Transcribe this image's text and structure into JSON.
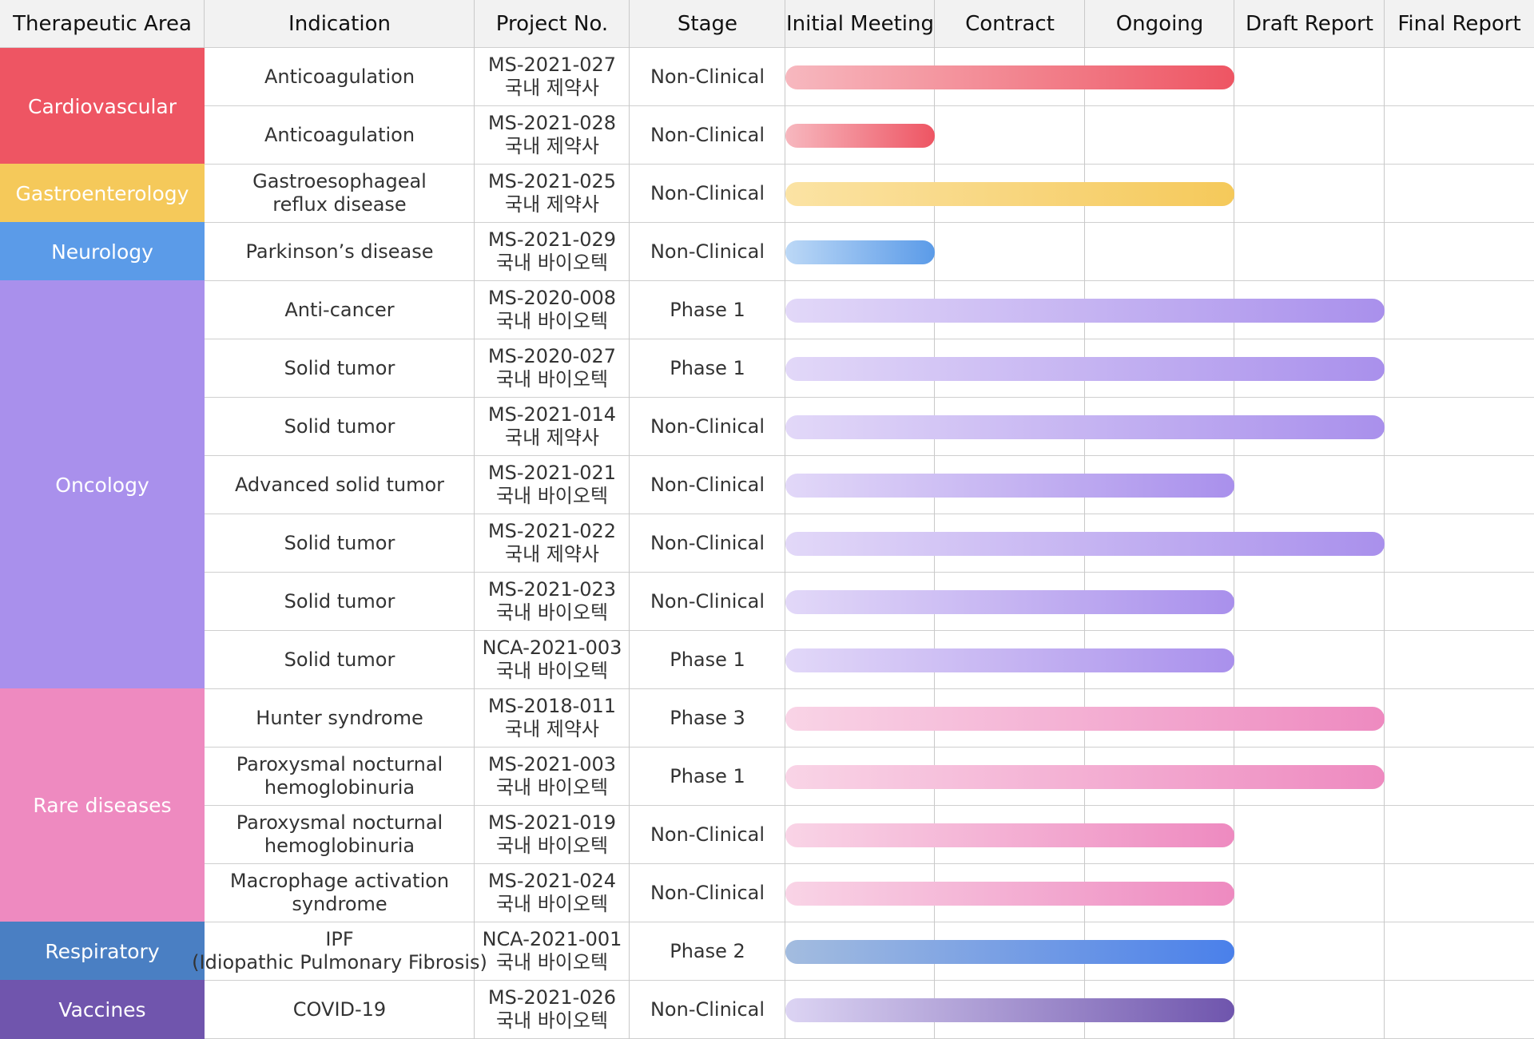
{
  "chart_data": {
    "type": "table",
    "headers": [
      "Therapeutic Area",
      "Indication",
      "Project No.",
      "Stage",
      "Initial Meeting",
      "Contract",
      "Ongoing",
      "Draft Report",
      "Final Report"
    ],
    "stage_columns": [
      "Initial Meeting",
      "Contract",
      "Ongoing",
      "Draft Report",
      "Final Report"
    ],
    "areas": [
      {
        "name": "Cardiovascular",
        "rows": 2,
        "color": "#ee5563",
        "bar_start": "#f7b8bf",
        "bar_end": "#ee5563"
      },
      {
        "name": "Gastroenterology",
        "rows": 1,
        "color": "#f5c95a",
        "bar_start": "#fbe3a4",
        "bar_end": "#f5c95a"
      },
      {
        "name": "Neurology",
        "rows": 1,
        "color": "#5b9be8",
        "bar_start": "#bcd8f6",
        "bar_end": "#5b9be8"
      },
      {
        "name": "Oncology",
        "rows": 7,
        "color": "#a990ec",
        "bar_start": "#e2d8f8",
        "bar_end": "#a990ec"
      },
      {
        "name": "Rare diseases",
        "rows": 4,
        "color": "#ee8ac0",
        "bar_start": "#f9d4e6",
        "bar_end": "#ee8ac0"
      },
      {
        "name": "Respiratory",
        "rows": 1,
        "color": "#4a7fc3",
        "bar_start": "#a3bcdf",
        "bar_end": "#4a80ea"
      },
      {
        "name": "Vaccines",
        "rows": 1,
        "color": "#7055ad",
        "bar_start": "#dcd4f3",
        "bar_end": "#6f55ad"
      }
    ],
    "rows": [
      {
        "indication": [
          "Anticoagulation"
        ],
        "project_no": "MS-2021-027",
        "sponsor": "국내 제약사",
        "stage": "Non-Clinical",
        "progress": "Ongoing",
        "progress_level": 3
      },
      {
        "indication": [
          "Anticoagulation"
        ],
        "project_no": "MS-2021-028",
        "sponsor": "국내 제약사",
        "stage": "Non-Clinical",
        "progress": "Initial Meeting",
        "progress_level": 1
      },
      {
        "indication": [
          "Gastroesophageal",
          "reflux disease"
        ],
        "project_no": "MS-2021-025",
        "sponsor": "국내 제약사",
        "stage": "Non-Clinical",
        "progress": "Ongoing",
        "progress_level": 3
      },
      {
        "indication": [
          "Parkinson’s disease"
        ],
        "project_no": "MS-2021-029",
        "sponsor": "국내 바이오텍",
        "stage": "Non-Clinical",
        "progress": "Initial Meeting",
        "progress_level": 1
      },
      {
        "indication": [
          "Anti-cancer"
        ],
        "project_no": "MS-2020-008",
        "sponsor": "국내 바이오텍",
        "stage": "Phase 1",
        "progress": "Draft Report",
        "progress_level": 4
      },
      {
        "indication": [
          "Solid tumor"
        ],
        "project_no": "MS-2020-027",
        "sponsor": "국내 바이오텍",
        "stage": "Phase 1",
        "progress": "Draft Report",
        "progress_level": 4
      },
      {
        "indication": [
          "Solid tumor"
        ],
        "project_no": "MS-2021-014",
        "sponsor": "국내 제약사",
        "stage": "Non-Clinical",
        "progress": "Draft Report",
        "progress_level": 4
      },
      {
        "indication": [
          "Advanced solid tumor"
        ],
        "project_no": "MS-2021-021",
        "sponsor": "국내 바이오텍",
        "stage": "Non-Clinical",
        "progress": "Ongoing",
        "progress_level": 3
      },
      {
        "indication": [
          "Solid tumor"
        ],
        "project_no": "MS-2021-022",
        "sponsor": "국내 제약사",
        "stage": "Non-Clinical",
        "progress": "Draft Report",
        "progress_level": 4
      },
      {
        "indication": [
          "Solid tumor"
        ],
        "project_no": "MS-2021-023",
        "sponsor": "국내 바이오텍",
        "stage": "Non-Clinical",
        "progress": "Ongoing",
        "progress_level": 3
      },
      {
        "indication": [
          "Solid tumor"
        ],
        "project_no": "NCA-2021-003",
        "sponsor": "국내 바이오텍",
        "stage": "Phase 1",
        "progress": "Ongoing",
        "progress_level": 3
      },
      {
        "indication": [
          "Hunter syndrome"
        ],
        "project_no": "MS-2018-011",
        "sponsor": "국내 제약사",
        "stage": "Phase 3",
        "progress": "Draft Report",
        "progress_level": 4
      },
      {
        "indication": [
          "Paroxysmal nocturnal",
          "hemoglobinuria"
        ],
        "project_no": "MS-2021-003",
        "sponsor": "국내 바이오텍",
        "stage": "Phase 1",
        "progress": "Draft Report",
        "progress_level": 4
      },
      {
        "indication": [
          "Paroxysmal nocturnal",
          "hemoglobinuria"
        ],
        "project_no": "MS-2021-019",
        "sponsor": "국내 바이오텍",
        "stage": "Non-Clinical",
        "progress": "Ongoing",
        "progress_level": 3
      },
      {
        "indication": [
          "Macrophage activation",
          "syndrome"
        ],
        "project_no": "MS-2021-024",
        "sponsor": "국내 바이오텍",
        "stage": "Non-Clinical",
        "progress": "Ongoing",
        "progress_level": 3
      },
      {
        "indication": [
          "IPF",
          "(Idiopathic Pulmonary Fibrosis)"
        ],
        "project_no": "NCA-2021-001",
        "sponsor": "국내 바이오텍",
        "stage": "Phase 2",
        "progress": "Ongoing",
        "progress_level": 3
      },
      {
        "indication": [
          "COVID-19"
        ],
        "project_no": "MS-2021-026",
        "sponsor": "국내 바이오텍",
        "stage": "Non-Clinical",
        "progress": "Ongoing",
        "progress_level": 3
      }
    ]
  }
}
